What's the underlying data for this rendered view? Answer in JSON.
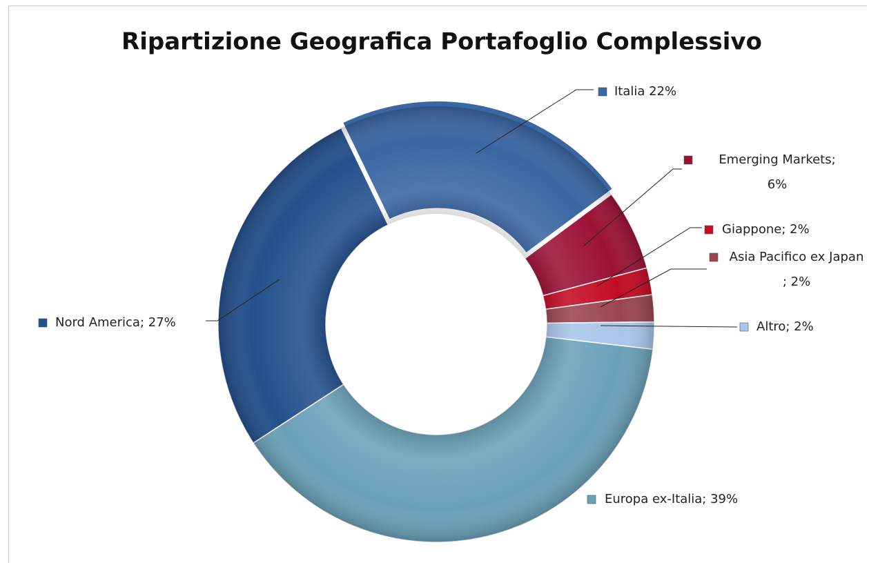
{
  "chart_data": {
    "type": "donut",
    "title": "Ripartizione Geografica Portafoglio Complessivo",
    "values": [
      22,
      6,
      2,
      2,
      2,
      39,
      27
    ],
    "value_labels": [
      "Italia 22%",
      "Emerging Markets;\n6%",
      "Giappone; 2%",
      "Asia Pacifico ex Japan\n; 2%",
      "Altro; 2%",
      "Europa ex-Italia; 39%",
      "Nord America; 27%"
    ],
    "colors": [
      "#3a66a2",
      "#9c1237",
      "#c30c24",
      "#9a4650",
      "#a9c6ea",
      "#6ba1b8",
      "#24508c"
    ]
  }
}
